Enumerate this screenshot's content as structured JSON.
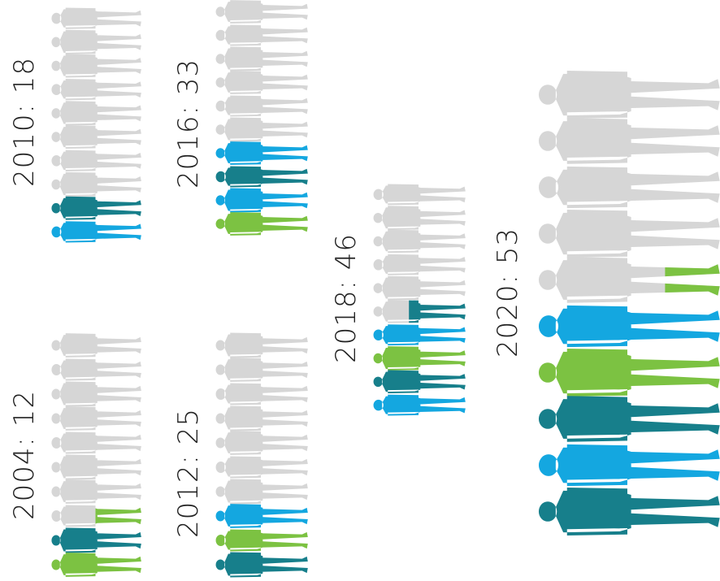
{
  "chart_data": [
    {
      "type": "pictogram",
      "label": "2004: 12",
      "year": 2004,
      "value": 12,
      "colored": [
        "green",
        "teal"
      ],
      "colored_fraction": 2.5
    },
    {
      "type": "pictogram",
      "label": "2010: 18",
      "year": 2010,
      "value": 18,
      "colored": [
        "blue",
        "teal"
      ],
      "colored_fraction": 2.0
    },
    {
      "type": "pictogram",
      "label": "2012: 25",
      "year": 2012,
      "value": 25,
      "colored": [
        "teal",
        "green",
        "blue"
      ],
      "colored_fraction": 3.0
    },
    {
      "type": "pictogram",
      "label": "2016: 33",
      "year": 2016,
      "value": 33,
      "colored": [
        "green",
        "blue",
        "teal",
        "blue"
      ],
      "colored_fraction": 4.0
    },
    {
      "type": "pictogram",
      "label": "2018: 46",
      "year": 2018,
      "value": 46,
      "colored": [
        "blue",
        "teal",
        "green",
        "blue",
        "teal"
      ],
      "colored_fraction": 4.6
    },
    {
      "type": "pictogram",
      "label": "2020: 53",
      "year": 2020,
      "value": 53,
      "colored": [
        "teal",
        "blue",
        "teal",
        "green",
        "blue",
        "green"
      ],
      "colored_fraction": 5.3
    }
  ],
  "colors": {
    "grey": "#d6d6d6",
    "green": "#7cc242",
    "teal": "#177f8b",
    "blue": "#14a7e0"
  }
}
